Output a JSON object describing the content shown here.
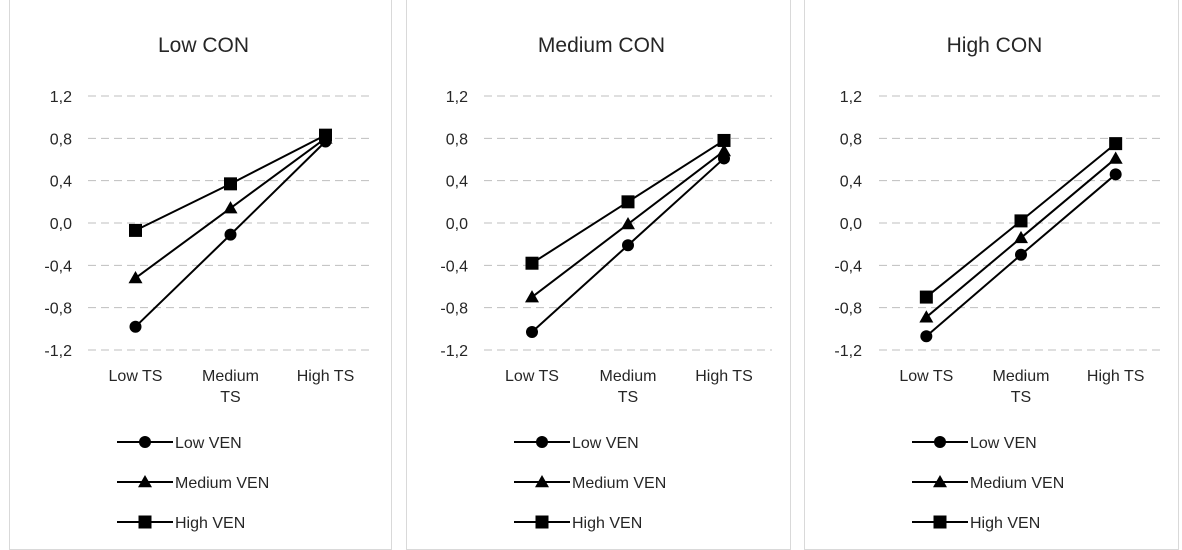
{
  "chart_data": [
    {
      "type": "line",
      "title": "Low CON",
      "categories": [
        "Low TS",
        "Medium TS",
        "High TS"
      ],
      "ylim": [
        -1.2,
        1.2
      ],
      "yticks": [
        "1,2",
        "0,8",
        "0,4",
        "0,0",
        "-0,4",
        "-0,8",
        "-1,2"
      ],
      "grid": true,
      "legend_position": "bottom",
      "series": [
        {
          "name": "Low VEN",
          "marker": "circle",
          "values": [
            -0.98,
            -0.11,
            0.77
          ]
        },
        {
          "name": "Medium VEN",
          "marker": "triangle",
          "values": [
            -0.52,
            0.14,
            0.8
          ]
        },
        {
          "name": "High VEN",
          "marker": "square",
          "values": [
            -0.07,
            0.37,
            0.83
          ]
        }
      ]
    },
    {
      "type": "line",
      "title": "Medium CON",
      "categories": [
        "Low TS",
        "Medium TS",
        "High TS"
      ],
      "ylim": [
        -1.2,
        1.2
      ],
      "yticks": [
        "1,2",
        "0,8",
        "0,4",
        "0,0",
        "-0,4",
        "-0,8",
        "-1,2"
      ],
      "grid": true,
      "legend_position": "bottom",
      "series": [
        {
          "name": "Low VEN",
          "marker": "circle",
          "values": [
            -1.03,
            -0.21,
            0.61
          ]
        },
        {
          "name": "Medium VEN",
          "marker": "triangle",
          "values": [
            -0.7,
            -0.01,
            0.68
          ]
        },
        {
          "name": "High VEN",
          "marker": "square",
          "values": [
            -0.38,
            0.2,
            0.78
          ]
        }
      ]
    },
    {
      "type": "line",
      "title": "High CON",
      "categories": [
        "Low TS",
        "Medium TS",
        "High TS"
      ],
      "ylim": [
        -1.2,
        1.2
      ],
      "yticks": [
        "1,2",
        "0,8",
        "0,4",
        "0,0",
        "-0,4",
        "-0,8",
        "-1,2"
      ],
      "grid": true,
      "legend_position": "bottom",
      "series": [
        {
          "name": "Low VEN",
          "marker": "circle",
          "values": [
            -1.07,
            -0.3,
            0.46
          ]
        },
        {
          "name": "Medium VEN",
          "marker": "triangle",
          "values": [
            -0.89,
            -0.14,
            0.61
          ]
        },
        {
          "name": "High VEN",
          "marker": "square",
          "values": [
            -0.7,
            0.02,
            0.75
          ]
        }
      ]
    }
  ]
}
